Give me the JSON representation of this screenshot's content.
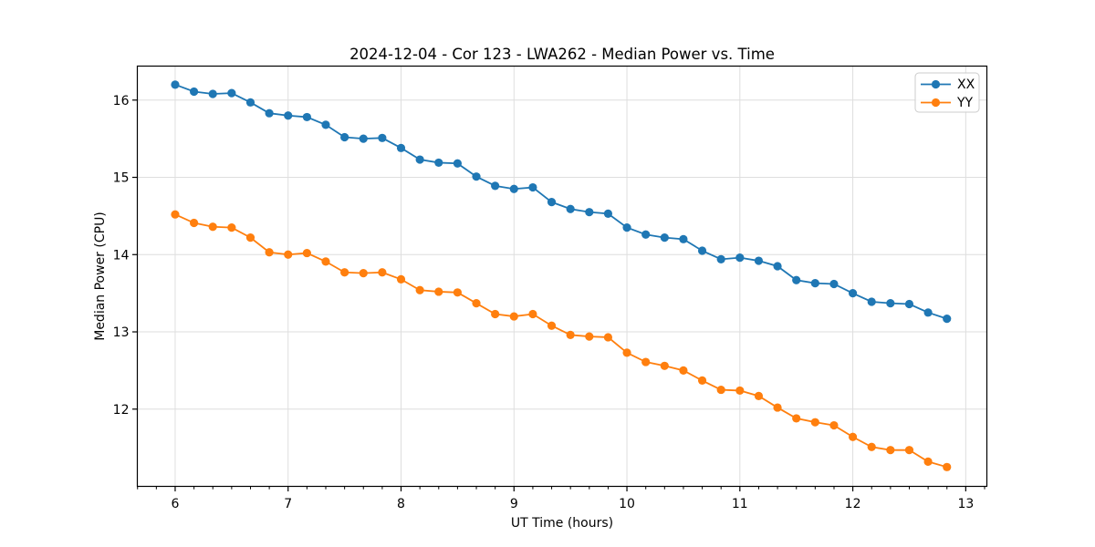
{
  "chart_data": {
    "type": "line",
    "title": "2024-12-04 - Cor 123 - LWA262 - Median Power vs. Time",
    "xlabel": "UT Time (hours)",
    "ylabel": "Median Power (CPU)",
    "xlim": [
      5.665,
      13.187
    ],
    "ylim": [
      11.0,
      16.44
    ],
    "x_ticks": [
      6,
      7,
      8,
      9,
      10,
      11,
      12,
      13
    ],
    "x_tick_labels": [
      "6",
      "7",
      "8",
      "9",
      "10",
      "11",
      "12",
      "13"
    ],
    "x_minor_tick_step": 0.16667,
    "y_ticks": [
      12,
      13,
      14,
      15,
      16
    ],
    "y_tick_labels": [
      "12",
      "13",
      "14",
      "15",
      "16"
    ],
    "grid": true,
    "grid_color": "#dedede",
    "marker": "o",
    "legend_position": "upper right",
    "x": [
      6.0,
      6.1667,
      6.3333,
      6.5,
      6.6667,
      6.8333,
      7.0,
      7.1667,
      7.3333,
      7.5,
      7.6667,
      7.8333,
      8.0,
      8.1667,
      8.3333,
      8.5,
      8.6667,
      8.8333,
      9.0,
      9.1667,
      9.3333,
      9.5,
      9.6667,
      9.8333,
      10.0,
      10.1667,
      10.3333,
      10.5,
      10.6667,
      10.8333,
      11.0,
      11.1667,
      11.3333,
      11.5,
      11.6667,
      11.8333,
      12.0,
      12.1667,
      12.3333,
      12.5,
      12.6667,
      12.8333
    ],
    "series": [
      {
        "name": "XX",
        "color": "#1f77b4",
        "values": [
          16.2,
          16.11,
          16.08,
          16.09,
          15.97,
          15.83,
          15.8,
          15.78,
          15.68,
          15.52,
          15.5,
          15.51,
          15.38,
          15.23,
          15.19,
          15.18,
          15.01,
          14.89,
          14.85,
          14.87,
          14.68,
          14.59,
          14.55,
          14.53,
          14.35,
          14.26,
          14.22,
          14.2,
          14.05,
          13.94,
          13.96,
          13.92,
          13.85,
          13.67,
          13.63,
          13.62,
          13.5,
          13.39,
          13.37,
          13.36,
          13.25,
          13.17
        ]
      },
      {
        "name": "YY",
        "color": "#ff7f0e",
        "values": [
          14.52,
          14.41,
          14.36,
          14.35,
          14.22,
          14.03,
          14.0,
          14.02,
          13.91,
          13.77,
          13.76,
          13.77,
          13.68,
          13.54,
          13.52,
          13.51,
          13.37,
          13.23,
          13.2,
          13.23,
          13.08,
          12.96,
          12.94,
          12.93,
          12.73,
          12.61,
          12.56,
          12.5,
          12.37,
          12.25,
          12.24,
          12.17,
          12.02,
          11.88,
          11.83,
          11.79,
          11.64,
          11.51,
          11.47,
          11.47,
          11.32,
          11.25
        ]
      }
    ]
  }
}
